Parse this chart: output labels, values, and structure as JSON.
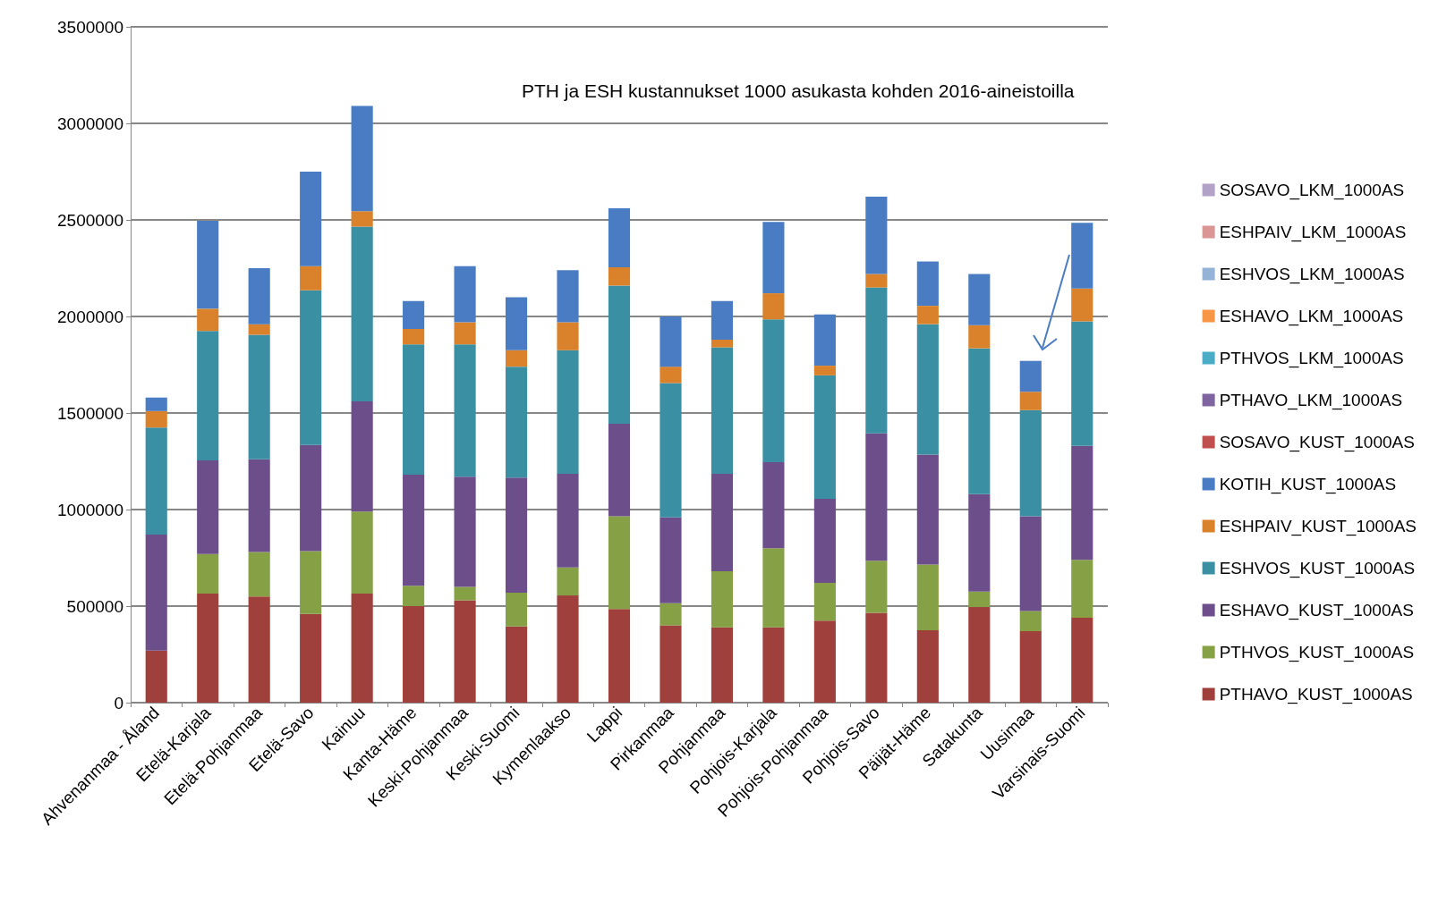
{
  "chart_data": {
    "type": "bar",
    "stacked": true,
    "title": "PTH ja ESH kustannukset 1000 asukasta kohden 2016-aineistoilla",
    "categories": [
      "Ahvenanmaa - Åland",
      "Etelä-Karjala",
      "Etelä-Pohjanmaa",
      "Etelä-Savo",
      "Kainuu",
      "Kanta-Häme",
      "Keski-Pohjanmaa",
      "Keski-Suomi",
      "Kymenlaakso",
      "Lappi",
      "Pirkanmaa",
      "Pohjanmaa",
      "Pohjois-Karjala",
      "Pohjois-Pohjanmaa",
      "Pohjois-Savo",
      "Päijät-Häme",
      "Satakunta",
      "Uusimaa",
      "Varsinais-Suomi"
    ],
    "series": [
      {
        "name": "PTHAVO_KUST_1000AS",
        "color": "#a0403d",
        "values": [
          270000,
          565000,
          550000,
          460000,
          565000,
          500000,
          530000,
          395000,
          555000,
          485000,
          400000,
          390000,
          390000,
          425000,
          465000,
          375000,
          495000,
          370000,
          440000
        ]
      },
      {
        "name": "PTHVOS_KUST_1000AS",
        "color": "#85a045",
        "values": [
          0,
          205000,
          230000,
          325000,
          425000,
          105000,
          70000,
          175000,
          145000,
          480000,
          115000,
          290000,
          410000,
          195000,
          270000,
          340000,
          80000,
          105000,
          300000
        ]
      },
      {
        "name": "ESHAVO_KUST_1000AS",
        "color": "#6b4e8a",
        "values": [
          600000,
          485000,
          480000,
          550000,
          570000,
          575000,
          570000,
          595000,
          485000,
          480000,
          445000,
          505000,
          445000,
          435000,
          660000,
          570000,
          505000,
          490000,
          590000
        ]
      },
      {
        "name": "ESHVOS_KUST_1000AS",
        "color": "#3a8fa3",
        "values": [
          555000,
          670000,
          645000,
          800000,
          905000,
          675000,
          685000,
          575000,
          640000,
          715000,
          695000,
          655000,
          740000,
          640000,
          755000,
          675000,
          755000,
          550000,
          645000
        ]
      },
      {
        "name": "ESHPAIV_KUST_1000AS",
        "color": "#d9822b",
        "values": [
          85000,
          115000,
          55000,
          125000,
          80000,
          80000,
          115000,
          85000,
          145000,
          95000,
          85000,
          40000,
          135000,
          50000,
          70000,
          95000,
          120000,
          95000,
          170000
        ]
      },
      {
        "name": "KOTIH_KUST_1000AS",
        "color": "#4a7cc4",
        "values": [
          70000,
          455000,
          290000,
          490000,
          545000,
          145000,
          290000,
          275000,
          270000,
          305000,
          260000,
          200000,
          370000,
          265000,
          400000,
          230000,
          265000,
          160000,
          340000
        ]
      },
      {
        "name": "SOSAVO_KUST_1000AS",
        "color": "#c0504d",
        "values": [
          0,
          0,
          0,
          0,
          0,
          0,
          0,
          0,
          0,
          0,
          0,
          0,
          0,
          0,
          0,
          0,
          0,
          0,
          0
        ]
      },
      {
        "name": "PTHAVO_LKM_1000AS",
        "color": "#7f64a0",
        "values": [
          0,
          0,
          0,
          0,
          0,
          0,
          0,
          0,
          0,
          0,
          0,
          0,
          0,
          0,
          0,
          0,
          0,
          0,
          0
        ]
      },
      {
        "name": "PTHVOS_LKM_1000AS",
        "color": "#4bacc6",
        "values": [
          0,
          0,
          0,
          0,
          0,
          0,
          0,
          0,
          0,
          0,
          0,
          0,
          0,
          0,
          0,
          0,
          0,
          0,
          0
        ]
      },
      {
        "name": "ESHAVO_LKM_1000AS",
        "color": "#f79646",
        "values": [
          0,
          0,
          0,
          0,
          0,
          0,
          0,
          0,
          0,
          0,
          0,
          0,
          0,
          0,
          0,
          0,
          0,
          0,
          0
        ]
      },
      {
        "name": "ESHVOS_LKM_1000AS",
        "color": "#95b3d7",
        "values": [
          0,
          0,
          0,
          0,
          0,
          0,
          0,
          0,
          0,
          0,
          0,
          0,
          0,
          0,
          0,
          0,
          0,
          0,
          0
        ]
      },
      {
        "name": "ESHPAIV_LKM_1000AS",
        "color": "#d99694",
        "values": [
          0,
          0,
          0,
          0,
          0,
          0,
          0,
          0,
          0,
          0,
          0,
          0,
          0,
          0,
          0,
          0,
          0,
          0,
          0
        ]
      },
      {
        "name": "SOSAVO_LKM_1000AS",
        "color": "#b3a2c7",
        "values": [
          0,
          0,
          0,
          0,
          0,
          0,
          0,
          0,
          0,
          0,
          0,
          0,
          0,
          0,
          0,
          0,
          0,
          0,
          0
        ]
      }
    ],
    "ylim": [
      0,
      3500000
    ],
    "yticks": [
      0,
      500000,
      1000000,
      1500000,
      2000000,
      2500000,
      3000000,
      3500000
    ],
    "grid": "y",
    "legend": "right"
  }
}
